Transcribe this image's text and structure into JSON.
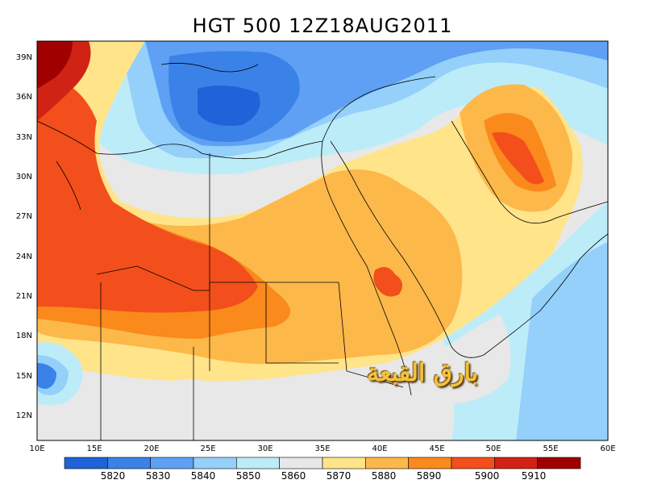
{
  "title": "HGT 500 12Z18AUG2011",
  "watermark": "بارق القبعة",
  "lat_labels": [
    "39N",
    "36N",
    "33N",
    "30N",
    "27N",
    "24N",
    "21N",
    "18N",
    "15N",
    "12N"
  ],
  "lon_labels": [
    "10E",
    "15E",
    "20E",
    "25E",
    "30E",
    "35E",
    "40E",
    "45E",
    "50E",
    "55E",
    "60E"
  ],
  "colorbar": {
    "labels": [
      "5820",
      "5830",
      "5840",
      "5850",
      "5860",
      "5870",
      "5880",
      "5890",
      "5900",
      "5910"
    ],
    "colors": [
      "#1e64d8",
      "#3a82e8",
      "#5fa0f5",
      "#94d0fa",
      "#bdecf9",
      "#e8e8e8",
      "#ffe48a",
      "#fdb84a",
      "#fa8a1c",
      "#f24f1c",
      "#d12315",
      "#a00000"
    ]
  }
}
